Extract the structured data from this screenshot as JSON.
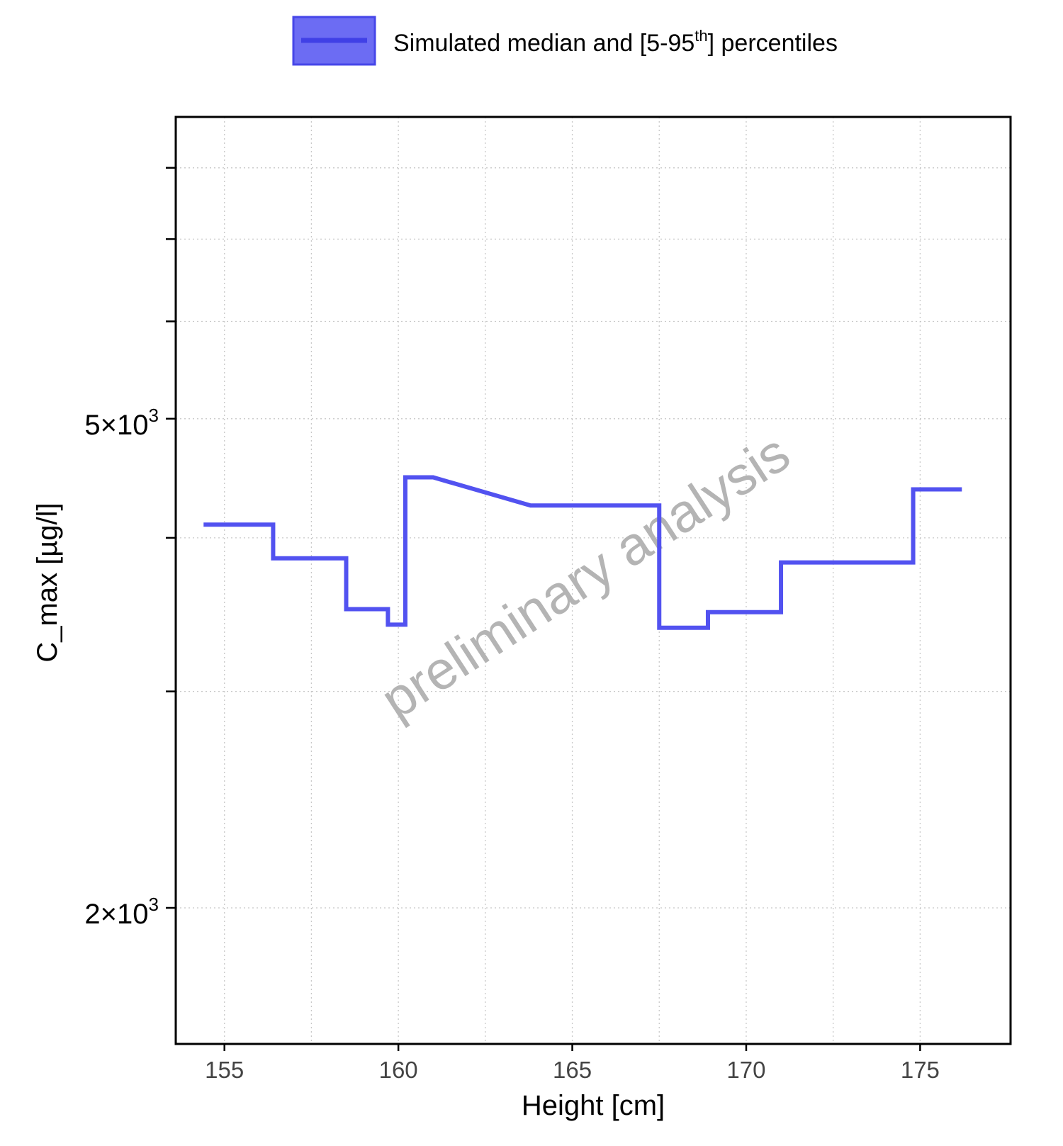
{
  "chart_data": {
    "type": "line",
    "title": "",
    "xlabel": "Height [cm]",
    "ylabel": "C_max [µg/l]",
    "xlim": [
      153.6,
      177.6
    ],
    "ylim": [
      1550,
      8800
    ],
    "y_scale": "log",
    "grid": true,
    "legend": {
      "position": "top",
      "entries": [
        {
          "prefix": "Simulated median and [5-95",
          "sup": "th",
          "suffix": "] percentiles",
          "color": "#5252f0"
        }
      ]
    },
    "x_ticks": [
      {
        "value": 155,
        "label": "155"
      },
      {
        "value": 160,
        "label": "160"
      },
      {
        "value": 165,
        "label": "165"
      },
      {
        "value": 170,
        "label": "170"
      },
      {
        "value": 175,
        "label": "175"
      }
    ],
    "x_minor": [
      157.5,
      162.5,
      167.5,
      172.5
    ],
    "y_ticks_labeled": [
      {
        "value": 2000,
        "mantissa": "2",
        "exp": "3"
      },
      {
        "value": 5000,
        "mantissa": "5",
        "exp": "3"
      }
    ],
    "y_ticks_minor": [
      3000,
      4000,
      6000,
      7000,
      8000
    ],
    "watermark": "preliminary analysis",
    "series": [
      {
        "color": "#5252f0",
        "step": "post",
        "x": [
          154.4,
          156.4,
          158.5,
          159.7,
          160.2,
          161.0,
          163.8,
          167.5,
          168.9,
          171.0,
          174.8,
          176.2
        ],
        "y": [
          4100,
          3850,
          3500,
          3400,
          4480,
          4480,
          4250,
          3380,
          3480,
          3820,
          4380,
          4380
        ]
      }
    ]
  }
}
